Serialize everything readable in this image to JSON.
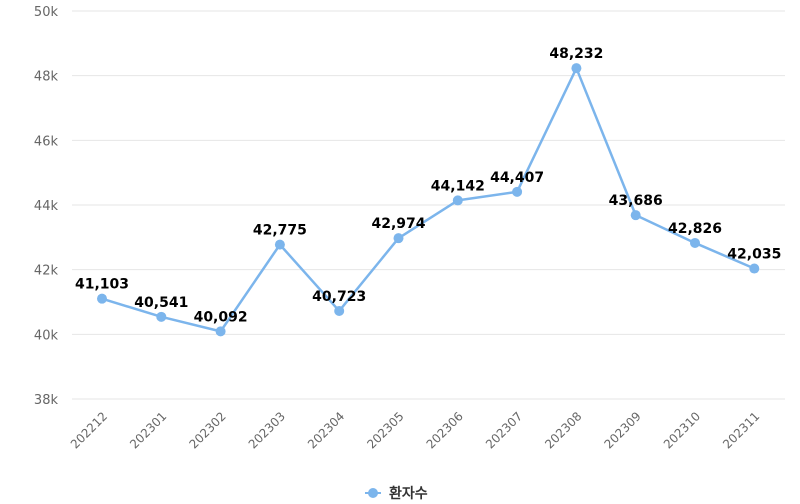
{
  "chart_data": {
    "type": "line",
    "categories": [
      "202212",
      "202301",
      "202302",
      "202303",
      "202304",
      "202305",
      "202306",
      "202307",
      "202308",
      "202309",
      "202310",
      "202311"
    ],
    "series": [
      {
        "name": "환자수",
        "values": [
          41103,
          40541,
          40092,
          42775,
          40723,
          42974,
          44142,
          44407,
          48232,
          43686,
          42826,
          42035
        ],
        "labels": [
          "41,103",
          "40,541",
          "40,092",
          "42,775",
          "40,723",
          "42,974",
          "44,142",
          "44,407",
          "48,232",
          "43,686",
          "42,826",
          "42,035"
        ]
      }
    ],
    "ylim": [
      38000,
      50000
    ],
    "yticks": [
      38000,
      40000,
      42000,
      44000,
      46000,
      48000,
      50000
    ],
    "ytick_labels": [
      "38k",
      "40k",
      "42k",
      "44k",
      "46k",
      "48k",
      "50k"
    ],
    "grid": true,
    "legend": "bottom-center",
    "color": "#7cb5ec"
  }
}
